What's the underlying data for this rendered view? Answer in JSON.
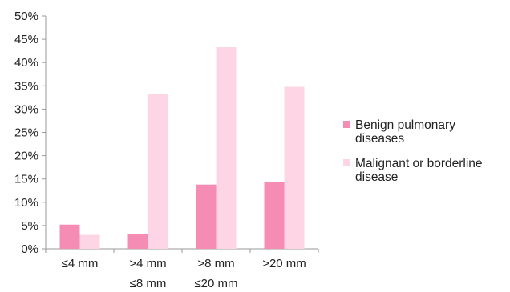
{
  "chart_data": {
    "type": "bar",
    "categories": [
      [
        "≤4 mm"
      ],
      [
        ">4 mm",
        "≤8 mm"
      ],
      [
        ">8 mm",
        "≤20 mm"
      ],
      [
        ">20 mm"
      ]
    ],
    "series": [
      {
        "name": [
          "Benign pulmonary",
          "diseases"
        ],
        "color": "#f58cb4",
        "values": [
          5.2,
          3.2,
          13.8,
          14.3
        ]
      },
      {
        "name": [
          "Malignant or borderline",
          "disease"
        ],
        "color": "#fdd5e4",
        "values": [
          3.0,
          33.3,
          43.3,
          34.8
        ]
      }
    ],
    "ylim": [
      0,
      50
    ],
    "yticks": [
      "0%",
      "5%",
      "10%",
      "15%",
      "20%",
      "25%",
      "30%",
      "35%",
      "40%",
      "45%",
      "50%"
    ],
    "grid": false,
    "legend_position": "right"
  }
}
